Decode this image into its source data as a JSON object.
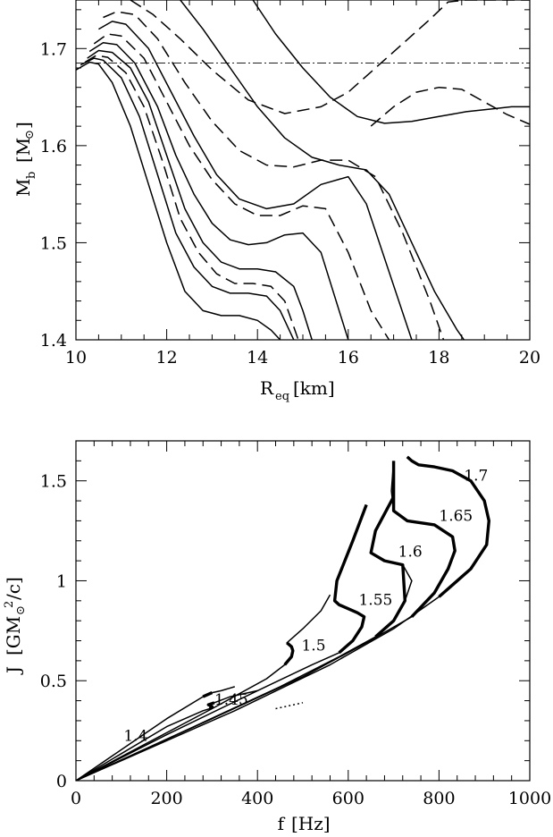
{
  "chart_data": [
    {
      "type": "line",
      "title": "",
      "xlabel": {
        "main": "R",
        "sub": "eq",
        "unit": "[km]"
      },
      "ylabel": {
        "main": "M",
        "sub": "b",
        "unit_open": "[M",
        "unit_sym": "⊙",
        "unit_close": "]"
      },
      "xlim": [
        10,
        20
      ],
      "ylim": [
        1.4,
        1.75
      ],
      "xticks": [
        10,
        12,
        14,
        16,
        18,
        20
      ],
      "xtick_labels": [
        "10",
        "12",
        "14",
        "16",
        "18",
        "20"
      ],
      "yticks": [
        1.4,
        1.5,
        1.6,
        1.7
      ],
      "ytick_labels": [
        "1.4",
        "1.5",
        "1.6",
        "1.7"
      ],
      "grid": false,
      "hline": {
        "y": 1.685,
        "style": "dashdot"
      },
      "series": [
        {
          "style": "solid",
          "x": [
            10.0,
            10.3,
            10.5,
            10.8,
            11.2,
            11.6,
            12.0,
            12.4,
            12.8,
            13.2,
            13.6,
            14.0,
            14.3,
            14.5
          ],
          "y": [
            1.678,
            1.686,
            1.684,
            1.665,
            1.62,
            1.56,
            1.5,
            1.45,
            1.43,
            1.425,
            1.425,
            1.42,
            1.41,
            1.4
          ]
        },
        {
          "style": "solid",
          "x": [
            10.1,
            10.4,
            10.6,
            11.0,
            11.4,
            11.8,
            12.2,
            12.6,
            13.0,
            13.4,
            13.8,
            14.2,
            14.5,
            14.8
          ],
          "y": [
            1.683,
            1.69,
            1.688,
            1.67,
            1.63,
            1.57,
            1.51,
            1.475,
            1.455,
            1.448,
            1.448,
            1.445,
            1.43,
            1.4
          ]
        },
        {
          "style": "dashed",
          "x": [
            10.2,
            10.45,
            10.7,
            11.1,
            11.5,
            11.9,
            12.3,
            12.7,
            13.1,
            13.5,
            13.9,
            14.3,
            14.6,
            14.9
          ],
          "y": [
            1.686,
            1.693,
            1.691,
            1.675,
            1.64,
            1.585,
            1.525,
            1.49,
            1.468,
            1.458,
            1.458,
            1.455,
            1.44,
            1.4
          ]
        },
        {
          "style": "solid",
          "x": [
            10.25,
            10.5,
            10.8,
            11.2,
            11.6,
            12.0,
            12.4,
            12.8,
            13.2,
            13.6,
            14.0,
            14.4,
            14.8,
            15.0,
            15.2
          ],
          "y": [
            1.69,
            1.698,
            1.696,
            1.68,
            1.645,
            1.59,
            1.535,
            1.5,
            1.48,
            1.473,
            1.473,
            1.47,
            1.455,
            1.43,
            1.4
          ]
        },
        {
          "style": "solid",
          "x": [
            10.3,
            10.6,
            10.9,
            11.3,
            11.8,
            12.2,
            12.6,
            13.0,
            13.4,
            13.8,
            14.2,
            14.6,
            15.0,
            15.4,
            15.8,
            16.0
          ],
          "y": [
            1.697,
            1.706,
            1.704,
            1.685,
            1.64,
            1.59,
            1.55,
            1.52,
            1.503,
            1.498,
            1.5,
            1.508,
            1.51,
            1.49,
            1.43,
            1.4
          ]
        },
        {
          "style": "dashed",
          "x": [
            10.4,
            10.7,
            11.0,
            11.5,
            12.0,
            12.5,
            13.0,
            13.5,
            14.0,
            14.5,
            15.0,
            15.5,
            16.0,
            16.5,
            16.9
          ],
          "y": [
            1.705,
            1.715,
            1.713,
            1.69,
            1.645,
            1.6,
            1.565,
            1.54,
            1.528,
            1.528,
            1.538,
            1.535,
            1.49,
            1.43,
            1.4
          ]
        },
        {
          "style": "solid",
          "x": [
            10.5,
            10.8,
            11.1,
            11.6,
            12.1,
            12.6,
            13.1,
            13.6,
            14.2,
            14.8,
            15.4,
            16.0,
            16.4,
            16.9,
            17.4
          ],
          "y": [
            1.72,
            1.728,
            1.725,
            1.7,
            1.655,
            1.61,
            1.57,
            1.545,
            1.535,
            1.54,
            1.56,
            1.568,
            1.54,
            1.47,
            1.4
          ]
        },
        {
          "style": "dashed",
          "x": [
            10.6,
            10.9,
            11.3,
            11.8,
            12.4,
            13.0,
            13.6,
            14.2,
            14.8,
            15.4,
            16.0,
            16.6,
            17.2,
            17.8,
            18.1
          ],
          "y": [
            1.732,
            1.738,
            1.735,
            1.71,
            1.665,
            1.625,
            1.595,
            1.58,
            1.578,
            1.585,
            1.585,
            1.568,
            1.51,
            1.44,
            1.4
          ]
        },
        {
          "style": "solid",
          "x": [
            12.3,
            12.8,
            13.4,
            14.0,
            14.6,
            15.2,
            15.8,
            16.4,
            16.9,
            17.4,
            17.9,
            18.4,
            18.7
          ],
          "y": [
            1.75,
            1.72,
            1.68,
            1.64,
            1.608,
            1.588,
            1.58,
            1.575,
            1.55,
            1.5,
            1.45,
            1.41,
            1.39
          ]
        },
        {
          "style": "dashed",
          "x": [
            11.2,
            11.7,
            12.3,
            13.0,
            13.8,
            14.6,
            15.4,
            16.0,
            16.6,
            17.2,
            17.8,
            18.2,
            18.6,
            19.0,
            19.5,
            20.0
          ],
          "y": [
            1.75,
            1.735,
            1.71,
            1.678,
            1.647,
            1.633,
            1.64,
            1.655,
            1.68,
            1.705,
            1.73,
            1.748,
            1.75,
            1.75,
            1.75,
            1.75
          ]
        },
        {
          "style": "solid",
          "x": [
            13.9,
            14.4,
            15.0,
            15.6,
            16.2,
            16.8,
            17.4,
            18.0,
            18.6,
            19.2,
            19.6,
            20.0
          ],
          "y": [
            1.75,
            1.715,
            1.68,
            1.65,
            1.63,
            1.623,
            1.625,
            1.63,
            1.635,
            1.638,
            1.64,
            1.64
          ]
        },
        {
          "style": "dashed",
          "x": [
            16.5,
            17.0,
            17.5,
            18.0,
            18.5,
            19.0,
            19.5,
            20.0
          ],
          "y": [
            1.62,
            1.64,
            1.655,
            1.66,
            1.658,
            1.645,
            1.632,
            1.622
          ]
        }
      ]
    },
    {
      "type": "line",
      "title": "",
      "xlabel": {
        "main": "f",
        "unit": "[Hz]"
      },
      "ylabel": {
        "main": "J",
        "unit_open": "[GM",
        "unit_sym": "⊙",
        "unit_sup": "2",
        "unit_close": "/c]"
      },
      "xlim": [
        0,
        1000
      ],
      "ylim": [
        0,
        1.7
      ],
      "xticks": [
        0,
        200,
        400,
        600,
        800,
        1000
      ],
      "xtick_labels": [
        "0",
        "200",
        "400",
        "600",
        "800",
        "1000"
      ],
      "yticks": [
        0,
        0.5,
        1,
        1.5
      ],
      "ytick_labels": [
        "0",
        "0.5",
        "1",
        "1.5"
      ],
      "grid": false,
      "series": [
        {
          "name": "1.4",
          "x": [
            0,
            100,
            200,
            280,
            300,
            320,
            350
          ],
          "y": [
            0,
            0.155,
            0.31,
            0.42,
            0.44,
            0.45,
            0.47
          ],
          "thick": [
            [
              280,
              300
            ]
          ]
        },
        {
          "name": "1.45",
          "x": [
            0,
            100,
            200,
            280,
            295,
            300,
            292,
            305,
            340,
            380,
            400
          ],
          "y": [
            0,
            0.135,
            0.27,
            0.35,
            0.36,
            0.37,
            0.38,
            0.39,
            0.42,
            0.44,
            0.45
          ],
          "thick": [
            [
              290,
              305
            ]
          ]
        },
        {
          "name": "1.5",
          "x": [
            0,
            150,
            300,
            420,
            460,
            475,
            478,
            475,
            465,
            500,
            540,
            560
          ],
          "y": [
            0,
            0.18,
            0.36,
            0.51,
            0.58,
            0.62,
            0.65,
            0.67,
            0.69,
            0.76,
            0.85,
            0.93
          ],
          "thick": [
            [
              460,
              480
            ]
          ]
        },
        {
          "name": "1.55",
          "x": [
            0,
            200,
            400,
            520,
            580,
            610,
            630,
            635,
            620,
            580,
            570,
            575,
            610,
            640
          ],
          "y": [
            0,
            0.23,
            0.45,
            0.58,
            0.64,
            0.7,
            0.77,
            0.82,
            0.84,
            0.88,
            0.9,
            1.0,
            1.2,
            1.38
          ],
          "thick": [
            [
              570,
              640
            ]
          ]
        },
        {
          "name": "1.6",
          "x": [
            0,
            250,
            450,
            580,
            660,
            700,
            725,
            740,
            720,
            680,
            650,
            660,
            700
          ],
          "y": [
            0,
            0.26,
            0.47,
            0.62,
            0.72,
            0.8,
            0.9,
            1.0,
            1.08,
            1.1,
            1.14,
            1.25,
            1.42
          ],
          "thick": [
            [
              650,
              730
            ]
          ]
        },
        {
          "name": "1.65",
          "x": [
            0,
            300,
            500,
            640,
            740,
            790,
            820,
            835,
            830,
            790,
            730,
            700,
            695,
            700
          ],
          "y": [
            0,
            0.31,
            0.52,
            0.69,
            0.82,
            0.94,
            1.06,
            1.15,
            1.22,
            1.28,
            1.3,
            1.35,
            1.45,
            1.6
          ],
          "thick": [
            [
              700,
              835
            ]
          ]
        },
        {
          "name": "1.7",
          "x": [
            0,
            350,
            560,
            700,
            800,
            870,
            905,
            910,
            900,
            870,
            830,
            790,
            755,
            740,
            730
          ],
          "y": [
            0,
            0.35,
            0.58,
            0.76,
            0.92,
            1.06,
            1.18,
            1.3,
            1.4,
            1.5,
            1.55,
            1.57,
            1.58,
            1.6,
            1.62
          ],
          "thick": [
            [
              730,
              910
            ]
          ]
        },
        {
          "name": "",
          "style": "dotted",
          "x": [
            440,
            460,
            480,
            500
          ],
          "y": [
            0.36,
            0.37,
            0.38,
            0.39
          ]
        }
      ],
      "annotations": [
        {
          "text": "1.4",
          "x": 105,
          "y": 0.2
        },
        {
          "text": "1.45",
          "x": 305,
          "y": 0.38
        },
        {
          "text": "1.5",
          "x": 497,
          "y": 0.65
        },
        {
          "text": "1.55",
          "x": 623,
          "y": 0.88
        },
        {
          "text": "1.6",
          "x": 710,
          "y": 1.12
        },
        {
          "text": "1.65",
          "x": 800,
          "y": 1.3
        },
        {
          "text": "1.7",
          "x": 855,
          "y": 1.5
        }
      ]
    }
  ]
}
